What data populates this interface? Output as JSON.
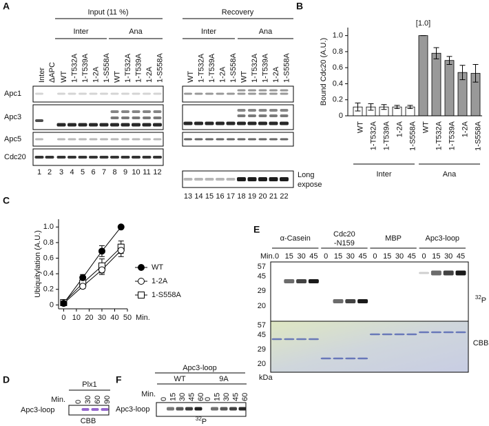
{
  "panel_labels": [
    "A",
    "B",
    "C",
    "D",
    "E",
    "F"
  ],
  "panel_a": {
    "input_header": "Input (11 %)",
    "recovery_header": "Recovery",
    "groups": [
      "Inter",
      "Ana",
      "Inter",
      "Ana"
    ],
    "lanes": [
      "Inter",
      "ΔAPC",
      "WT",
      "1-T532A",
      "1-T539A",
      "1-2A",
      "1-S558A",
      "WT",
      "1-T532A",
      "1-T539A",
      "1-2A",
      "1-S558A",
      "WT",
      "1-T532A",
      "1-T539A",
      "1-2A",
      "1-S558A",
      "WT",
      "1-T532A",
      "1-T539A",
      "1-2A",
      "1-S558A"
    ],
    "rows": [
      "Apc1",
      "Apc3",
      "Apc5",
      "Cdc20"
    ],
    "lane_numbers": [
      1,
      2,
      3,
      4,
      5,
      6,
      7,
      8,
      9,
      10,
      11,
      12,
      13,
      14,
      15,
      16,
      17,
      18,
      19,
      20,
      21,
      22
    ],
    "long_expose": [
      "Long",
      "expose"
    ]
  },
  "chart_data": [
    {
      "type": "bar",
      "ylabel": "Bound Cdc20 (A.U.)",
      "categories": [
        "WT",
        "1-T532A",
        "1-T539A",
        "1-2A",
        "1-S558A",
        "WT",
        "1-T532A",
        "1-T539A",
        "1-2A",
        "1-S558A"
      ],
      "values": [
        0.11,
        0.11,
        0.11,
        0.11,
        0.11,
        1.0,
        0.78,
        0.69,
        0.54,
        0.53
      ],
      "errors": [
        0.05,
        0.04,
        0.03,
        0.02,
        0.02,
        0,
        0.07,
        0.05,
        0.09,
        0.11
      ],
      "colors": [
        "#ffffff",
        "#ffffff",
        "#ffffff",
        "#ffffff",
        "#ffffff",
        "#999999",
        "#999999",
        "#999999",
        "#999999",
        "#999999"
      ],
      "groups": [
        "Inter",
        "Ana"
      ],
      "annotation": "[1.0]",
      "ylim": [
        0,
        1.1
      ],
      "yticks": [
        0,
        0.2,
        0.4,
        0.6,
        0.8,
        {
          "value": 1,
          "label": "1.0"
        }
      ]
    },
    {
      "type": "line",
      "xlabel": "Min.",
      "ylabel": "Ubiquitylation (A.U.)",
      "x": [
        0,
        15,
        30,
        45
      ],
      "series": [
        {
          "name": "WT",
          "color": "#000000",
          "marker": "filled-circle",
          "values": [
            0.02,
            0.35,
            0.69,
            1.0
          ],
          "errors": [
            0.02,
            0.04,
            0.07,
            0
          ]
        },
        {
          "name": "1-2A",
          "color": "#000000",
          "marker": "open-circle",
          "values": [
            0.02,
            0.24,
            0.45,
            0.7
          ],
          "errors": [
            0.02,
            0.03,
            0.06,
            0.08
          ]
        },
        {
          "name": "1-S558A",
          "color": "#000000",
          "marker": "open-square",
          "values": [
            0.03,
            0.28,
            0.5,
            0.74
          ],
          "errors": [
            0.02,
            0.04,
            0.09,
            0.08
          ]
        }
      ],
      "xlim": [
        -4,
        50
      ],
      "xticks": [
        0,
        10,
        20,
        30,
        40,
        50
      ],
      "ylim": [
        -0.05,
        1.1
      ],
      "yticks": [
        0,
        0.2,
        0.4,
        0.6,
        0.8,
        {
          "value": 1,
          "label": "1.0"
        }
      ]
    }
  ],
  "panel_d": {
    "title": "Plx1",
    "min_label": "Min.",
    "times": [
      0,
      30,
      60,
      90
    ],
    "row_label": "Apc3-loop",
    "stain": "CBB"
  },
  "panel_e": {
    "groups": [
      [
        "α-Casein"
      ],
      [
        "Cdc20",
        "-N159"
      ],
      [
        "MBP"
      ],
      [
        "Apc3-loop"
      ]
    ],
    "min_label": "Min.",
    "times": [
      [
        0,
        15,
        30,
        45
      ],
      [
        0,
        15,
        30,
        45
      ],
      [
        0,
        15,
        30,
        45
      ],
      [
        0,
        15,
        30,
        45
      ]
    ],
    "mw": [
      57,
      45,
      29,
      20
    ],
    "top_stain": {
      "mass": "32",
      "element": "P"
    },
    "bottom_stain": "CBB",
    "unit": "kDa"
  },
  "panel_f": {
    "title": "Apc3-loop",
    "groups": [
      "WT",
      "9A"
    ],
    "min_label": "Min.",
    "times": [
      [
        0,
        15,
        30,
        45,
        60
      ],
      [
        0,
        15,
        30,
        45,
        60
      ]
    ],
    "row_label": "Apc3-loop",
    "stain": {
      "mass": "32",
      "element": "P"
    }
  }
}
